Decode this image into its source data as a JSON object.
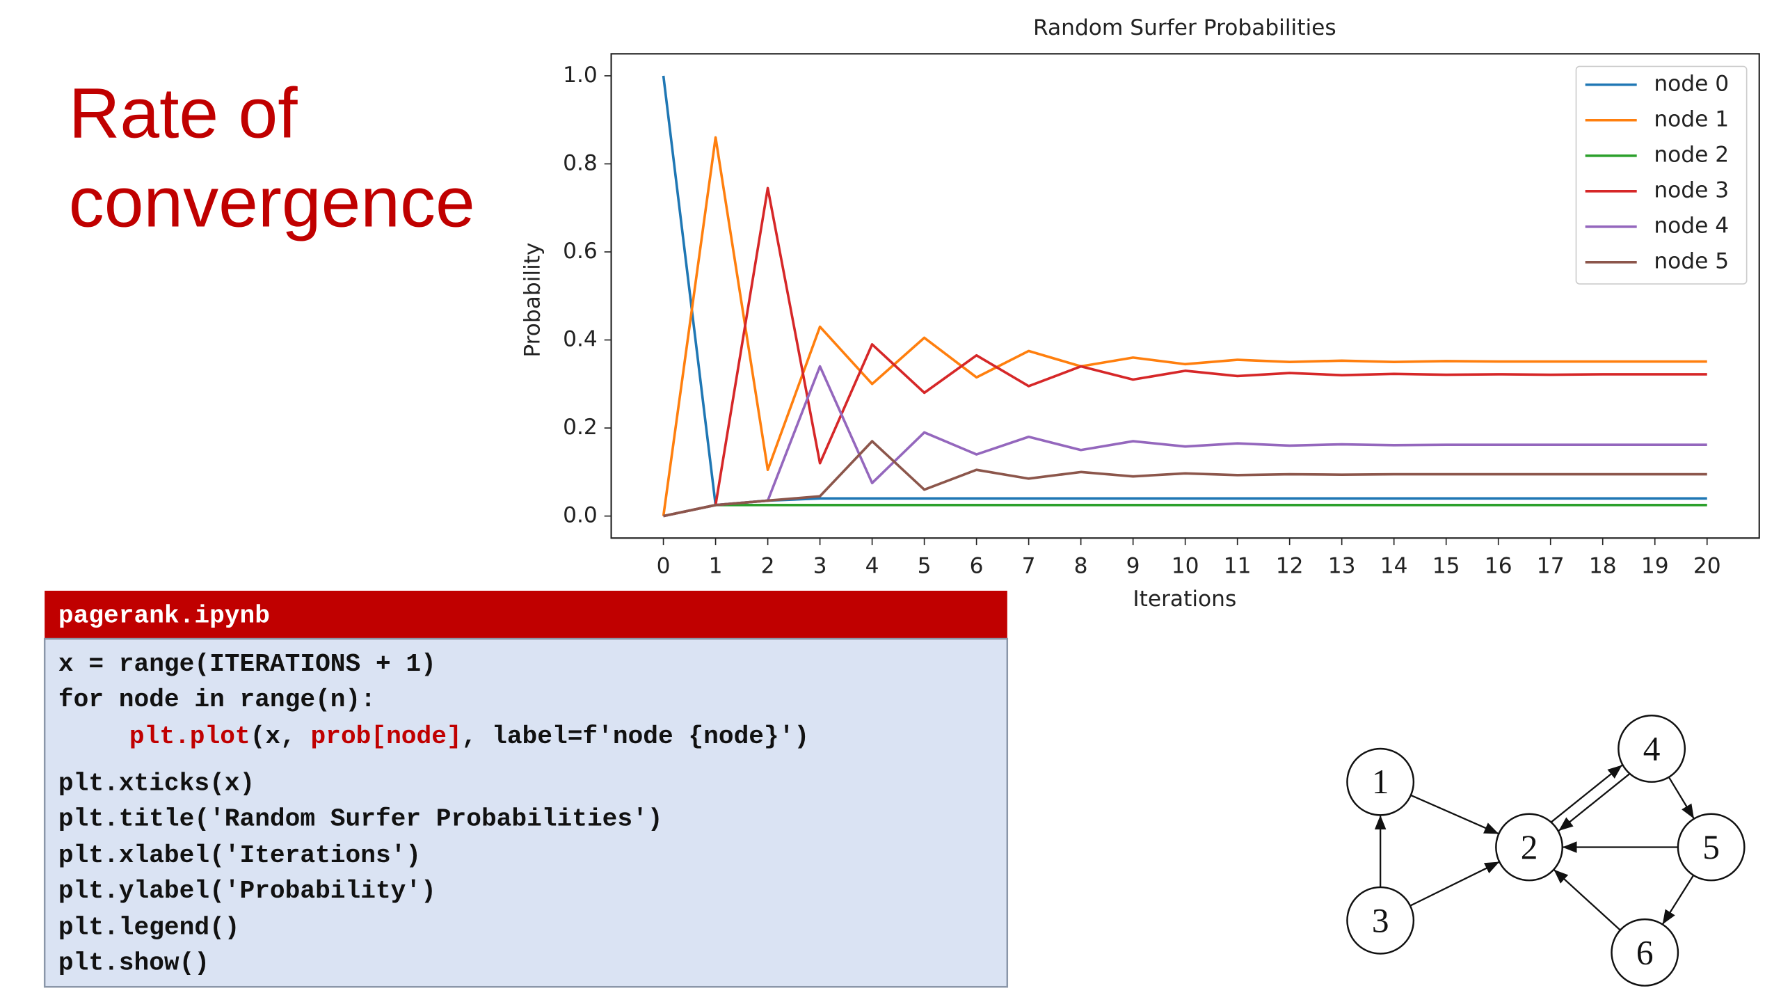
{
  "slide_title": [
    "Rate of",
    "convergence"
  ],
  "chart_data": {
    "type": "line",
    "title": "Random Surfer Probabilities",
    "x_label": "Iterations",
    "y_label": "Probability",
    "x": [
      0,
      1,
      2,
      3,
      4,
      5,
      6,
      7,
      8,
      9,
      10,
      11,
      12,
      13,
      14,
      15,
      16,
      17,
      18,
      19,
      20
    ],
    "xlim": [
      -1,
      21
    ],
    "xticks": [
      0,
      1,
      2,
      3,
      4,
      5,
      6,
      7,
      8,
      9,
      10,
      11,
      12,
      13,
      14,
      15,
      16,
      17,
      18,
      19,
      20
    ],
    "ylim": [
      -0.05,
      1.05
    ],
    "yticks": [
      {
        "value": 0,
        "label": "0.0"
      },
      0.2,
      0.4,
      0.6,
      0.8,
      {
        "value": 1,
        "label": "1.0"
      }
    ],
    "grid": false,
    "legend": "upper right",
    "series": [
      {
        "name": "node 0",
        "color": "#1f77b4",
        "values": [
          1.0,
          0.025,
          0.035,
          0.04,
          0.04,
          0.04,
          0.04,
          0.04,
          0.04,
          0.04,
          0.04,
          0.04,
          0.04,
          0.04,
          0.04,
          0.04,
          0.04,
          0.04,
          0.04,
          0.04,
          0.04
        ]
      },
      {
        "name": "node 1",
        "color": "#ff7f0e",
        "values": [
          0,
          0.86,
          0.105,
          0.43,
          0.3,
          0.405,
          0.315,
          0.375,
          0.34,
          0.36,
          0.345,
          0.355,
          0.35,
          0.353,
          0.35,
          0.352,
          0.351,
          0.351,
          0.351,
          0.351,
          0.351
        ]
      },
      {
        "name": "node 2",
        "color": "#2ca02c",
        "values": [
          0,
          0.025,
          0.025,
          0.025,
          0.025,
          0.025,
          0.025,
          0.025,
          0.025,
          0.025,
          0.025,
          0.025,
          0.025,
          0.025,
          0.025,
          0.025,
          0.025,
          0.025,
          0.025,
          0.025,
          0.025
        ]
      },
      {
        "name": "node 3",
        "color": "#d62728",
        "values": [
          0,
          0.025,
          0.745,
          0.12,
          0.39,
          0.28,
          0.365,
          0.295,
          0.34,
          0.31,
          0.33,
          0.318,
          0.325,
          0.32,
          0.323,
          0.321,
          0.322,
          0.321,
          0.322,
          0.322,
          0.322
        ]
      },
      {
        "name": "node 4",
        "color": "#9467bd",
        "values": [
          0,
          0.025,
          0.035,
          0.34,
          0.075,
          0.19,
          0.14,
          0.18,
          0.15,
          0.17,
          0.158,
          0.165,
          0.16,
          0.163,
          0.161,
          0.162,
          0.162,
          0.162,
          0.162,
          0.162,
          0.162
        ]
      },
      {
        "name": "node 5",
        "color": "#8c564b",
        "values": [
          0,
          0.025,
          0.035,
          0.045,
          0.17,
          0.06,
          0.105,
          0.085,
          0.1,
          0.09,
          0.097,
          0.093,
          0.095,
          0.094,
          0.095,
          0.095,
          0.095,
          0.095,
          0.095,
          0.095,
          0.095
        ]
      }
    ]
  },
  "code": {
    "filename": "pagerank.ipynb",
    "lines": [
      [
        {
          "text": "x = range(ITERATIONS + 1)"
        }
      ],
      [
        {
          "text": "for node in range(n):"
        }
      ],
      [
        {
          "text": "plt.plot",
          "color": "#c00000"
        },
        {
          "text": "(x, "
        },
        {
          "text": "prob[node]",
          "color": "#c00000"
        },
        {
          "text": ", label=f'node {node}')"
        }
      ],
      [
        {
          "text": "plt.xticks(x)"
        }
      ],
      [
        {
          "text": "plt.title('Random Surfer Probabilities')"
        }
      ],
      [
        {
          "text": "plt.xlabel('Iterations')"
        }
      ],
      [
        {
          "text": "plt.ylabel('Probability')"
        }
      ],
      [
        {
          "text": "plt.legend()"
        }
      ],
      [
        {
          "text": "plt.show()"
        }
      ]
    ]
  },
  "diagram": {
    "nodes": [
      {
        "label": "1"
      },
      {
        "label": "2"
      },
      {
        "label": "3"
      },
      {
        "label": "4"
      },
      {
        "label": "5"
      },
      {
        "label": "6"
      }
    ]
  }
}
